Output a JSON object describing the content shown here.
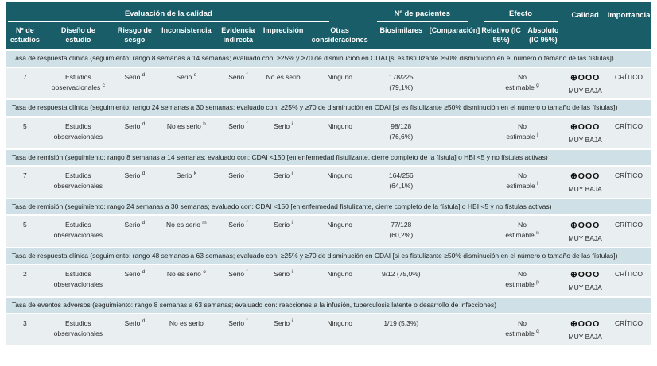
{
  "colors": {
    "header_bg": "#185d67",
    "header_text": "#ffffff",
    "section_band_bg": "#cfe1e7",
    "data_row_bg": "#e9eef0",
    "separator": "#ffffff",
    "body_text": "#2a2a2a"
  },
  "table": {
    "groups": {
      "evaluacion": "Evaluación de la calidad",
      "pacientes": "Nº de pacientes",
      "efecto": "Efecto"
    },
    "corner_columns": {
      "calidad": "Calidad",
      "importancia": "Importancia"
    },
    "columns": [
      "Nº de estudios",
      "Diseño de estudio",
      "Riesgo de sesgo",
      "Inconsistencia",
      "Evidencia indirecta",
      "Imprecisión",
      "Otras consideraciones",
      "Biosimilares",
      "[Comparación]",
      "Relativo (IC 95%)",
      "Absoluto (IC 95%)"
    ]
  },
  "sections": [
    {
      "label": "Tasa de respuesta clínica (seguimiento: rango 8 semanas a 14 semanas; evaluado con: ≥25% y ≥70 de disminución en CDAI [si es fistulizante ≥50% disminución en el número o tamaño de las fístulas])",
      "row": {
        "n_estudios": {
          "lines": [
            "7"
          ],
          "sup": ""
        },
        "diseno": {
          "lines": [
            "Estudios",
            "observacionales"
          ],
          "sup": "c"
        },
        "riesgo": {
          "lines": [
            "Serio"
          ],
          "sup": "d"
        },
        "inconsistencia": {
          "lines": [
            "Serio"
          ],
          "sup": "e"
        },
        "evidencia": {
          "lines": [
            "Serio"
          ],
          "sup": "f"
        },
        "imprecision": {
          "lines": [
            "No es serio"
          ],
          "sup": ""
        },
        "otras": {
          "lines": [
            "Ninguno"
          ],
          "sup": ""
        },
        "biosimilares": {
          "lines": [
            "178/225",
            "(79,1%)"
          ],
          "sup": ""
        },
        "comparacion": {
          "lines": [],
          "sup": ""
        },
        "efecto": {
          "lines": [
            "No",
            "estimable"
          ],
          "sup": "g"
        },
        "calidad": {
          "symbols": "⊕OOO",
          "label": "MUY BAJA"
        },
        "importancia": "CRÍTICO"
      }
    },
    {
      "label": "Tasa de respuesta clínica (seguimiento: rango 24 semanas a 30 semanas; evaluado con: ≥25% y ≥70 de disminución en CDAI [si es fistulizante ≥50% disminución en el número o tamaño de las fístulas])",
      "row": {
        "n_estudios": {
          "lines": [
            "5"
          ],
          "sup": ""
        },
        "diseno": {
          "lines": [
            "Estudios",
            "observacionales"
          ],
          "sup": ""
        },
        "riesgo": {
          "lines": [
            "Serio"
          ],
          "sup": "d"
        },
        "inconsistencia": {
          "lines": [
            "No es serio"
          ],
          "sup": "h"
        },
        "evidencia": {
          "lines": [
            "Serio"
          ],
          "sup": "f"
        },
        "imprecision": {
          "lines": [
            "Serio"
          ],
          "sup": "i"
        },
        "otras": {
          "lines": [
            "Ninguno"
          ],
          "sup": ""
        },
        "biosimilares": {
          "lines": [
            "98/128",
            "(76,6%)"
          ],
          "sup": ""
        },
        "comparacion": {
          "lines": [],
          "sup": ""
        },
        "efecto": {
          "lines": [
            "No",
            "estimable"
          ],
          "sup": "j"
        },
        "calidad": {
          "symbols": "⊕OOO",
          "label": "MUY BAJA"
        },
        "importancia": "CRÍTICO"
      }
    },
    {
      "label": "Tasa de remisión (seguimiento: rango 8 semanas a 14 semanas; evaluado con: CDAI <150 [en enfermedad fistulizante, cierre completo de la fístula] o HBI <5 y no fístulas activas)",
      "row": {
        "n_estudios": {
          "lines": [
            "7"
          ],
          "sup": ""
        },
        "diseno": {
          "lines": [
            "Estudios",
            "observacionales"
          ],
          "sup": ""
        },
        "riesgo": {
          "lines": [
            "Serio"
          ],
          "sup": "d"
        },
        "inconsistencia": {
          "lines": [
            "Serio"
          ],
          "sup": "k"
        },
        "evidencia": {
          "lines": [
            "Serio"
          ],
          "sup": "f"
        },
        "imprecision": {
          "lines": [
            "Serio"
          ],
          "sup": "i"
        },
        "otras": {
          "lines": [
            "Ninguno"
          ],
          "sup": ""
        },
        "biosimilares": {
          "lines": [
            "164/256",
            "(64,1%)"
          ],
          "sup": ""
        },
        "comparacion": {
          "lines": [],
          "sup": ""
        },
        "efecto": {
          "lines": [
            "No",
            "estimable"
          ],
          "sup": "l"
        },
        "calidad": {
          "symbols": "⊕OOO",
          "label": "MUY BAJA"
        },
        "importancia": "CRÍTICO"
      }
    },
    {
      "label": "Tasa de remisión (seguimiento: rango 24 semanas a 30 semanas; evaluado con: CDAI <150 [en enfermedad fistulizante, cierre completo de la fístula] o HBI <5 y no fístulas activas)",
      "row": {
        "n_estudios": {
          "lines": [
            "5"
          ],
          "sup": ""
        },
        "diseno": {
          "lines": [
            "Estudios",
            "observacionales"
          ],
          "sup": ""
        },
        "riesgo": {
          "lines": [
            "Serio"
          ],
          "sup": "d"
        },
        "inconsistencia": {
          "lines": [
            "No es serio"
          ],
          "sup": "m"
        },
        "evidencia": {
          "lines": [
            "Serio"
          ],
          "sup": "f"
        },
        "imprecision": {
          "lines": [
            "Serio"
          ],
          "sup": "i"
        },
        "otras": {
          "lines": [
            "Ninguno"
          ],
          "sup": ""
        },
        "biosimilares": {
          "lines": [
            "77/128",
            "(60,2%)"
          ],
          "sup": ""
        },
        "comparacion": {
          "lines": [],
          "sup": ""
        },
        "efecto": {
          "lines": [
            "No",
            "estimable"
          ],
          "sup": "n"
        },
        "calidad": {
          "symbols": "⊕OOO",
          "label": "MUY BAJA"
        },
        "importancia": "CRÍTICO"
      }
    },
    {
      "label": "Tasa de respuesta clínica (seguimiento: rango 48 semanas a 63 semanas; evaluado con: ≥25% y ≥70 de disminución en CDAI [si es fistulizante ≥50% disminución en el número o tamaño de las fístulas])",
      "row": {
        "n_estudios": {
          "lines": [
            "2"
          ],
          "sup": ""
        },
        "diseno": {
          "lines": [
            "Estudios",
            "observacionales"
          ],
          "sup": ""
        },
        "riesgo": {
          "lines": [
            "Serio"
          ],
          "sup": "d"
        },
        "inconsistencia": {
          "lines": [
            "No es serio"
          ],
          "sup": "o"
        },
        "evidencia": {
          "lines": [
            "Serio"
          ],
          "sup": "f"
        },
        "imprecision": {
          "lines": [
            "Serio"
          ],
          "sup": "i"
        },
        "otras": {
          "lines": [
            "Ninguno"
          ],
          "sup": ""
        },
        "biosimilares": {
          "lines": [
            "9/12 (75,0%)"
          ],
          "sup": ""
        },
        "comparacion": {
          "lines": [],
          "sup": ""
        },
        "efecto": {
          "lines": [
            "No",
            "estimable"
          ],
          "sup": "p"
        },
        "calidad": {
          "symbols": "⊕OOO",
          "label": "MUY BAJA"
        },
        "importancia": "CRÍTICO"
      }
    },
    {
      "label": "Tasa de eventos adversos (seguimiento: rango 8 semanas a 63 semanas; evaluado con: reacciones a la infusión, tuberculosis latente o desarrollo de infecciones)",
      "row": {
        "n_estudios": {
          "lines": [
            "3"
          ],
          "sup": ""
        },
        "diseno": {
          "lines": [
            "Estudios",
            "observacionales"
          ],
          "sup": ""
        },
        "riesgo": {
          "lines": [
            "Serio"
          ],
          "sup": "d"
        },
        "inconsistencia": {
          "lines": [
            "No es serio"
          ],
          "sup": ""
        },
        "evidencia": {
          "lines": [
            "Serio"
          ],
          "sup": "f"
        },
        "imprecision": {
          "lines": [
            "Serio"
          ],
          "sup": "i"
        },
        "otras": {
          "lines": [
            "Ninguno"
          ],
          "sup": ""
        },
        "biosimilares": {
          "lines": [
            "1/19 (5,3%)"
          ],
          "sup": ""
        },
        "comparacion": {
          "lines": [],
          "sup": ""
        },
        "efecto": {
          "lines": [
            "No",
            "estimable"
          ],
          "sup": "q"
        },
        "calidad": {
          "symbols": "⊕OOO",
          "label": "MUY BAJA"
        },
        "importancia": "CRÍTICO"
      }
    }
  ]
}
